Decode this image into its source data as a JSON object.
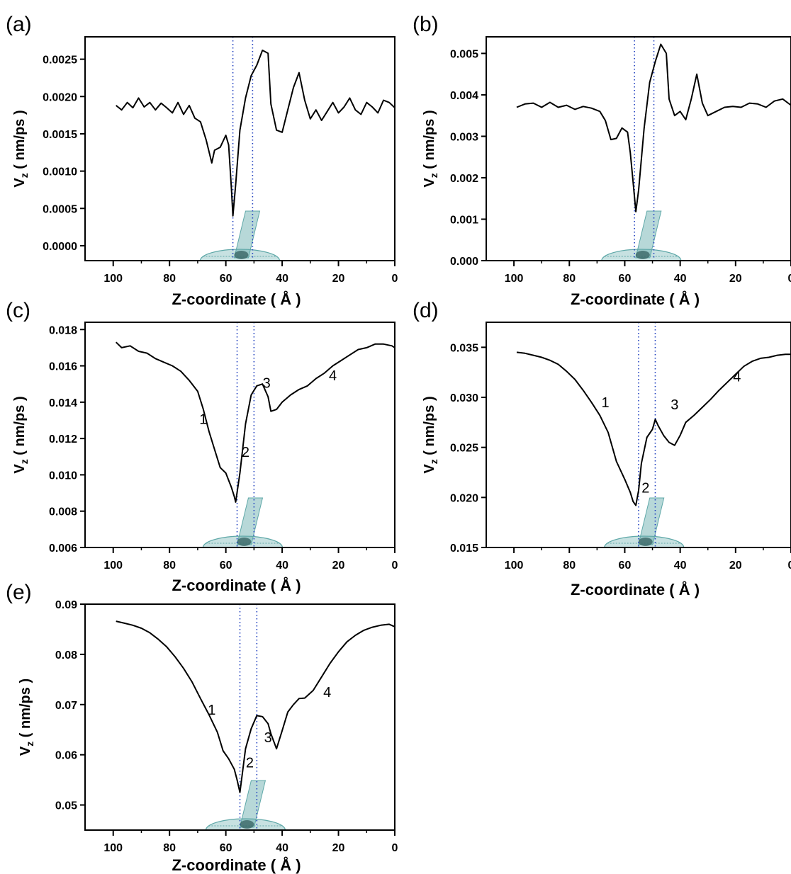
{
  "figure": {
    "colors": {
      "curve": "#000000",
      "marker_line": "#1f3fbf",
      "nanotube": "#5fa8a8",
      "frame": "#000000"
    }
  },
  "chart_data": [
    {
      "panel": "(a)",
      "type": "line",
      "xlabel": "Z-coordinate  ( Å )",
      "ylabel": "V_z ( nm/ps )",
      "xlim": [
        0,
        110
      ],
      "x_reversed": true,
      "ylim": [
        -0.0002,
        0.0028
      ],
      "xticks": [
        100,
        80,
        60,
        40,
        20,
        0
      ],
      "yticks": [
        "0.0000",
        "0.0005",
        "0.0010",
        "0.0015",
        "0.0020",
        "0.0025"
      ],
      "ytick_values": [
        0,
        0.0005,
        0.001,
        0.0015,
        0.002,
        0.0025
      ],
      "vlines": [
        57.5,
        50.5
      ],
      "series": [
        {
          "x": [
            99,
            97,
            95,
            93,
            91,
            89,
            87,
            85,
            83,
            81,
            79,
            77,
            75,
            73,
            71,
            69,
            67,
            65,
            64,
            62,
            60,
            59,
            58,
            57.5,
            56.5,
            55,
            53,
            51,
            49,
            47,
            45,
            44,
            42,
            40,
            38,
            36,
            34,
            32,
            30,
            28,
            26,
            24,
            22,
            20,
            18,
            16,
            14,
            12,
            10,
            8,
            6,
            4,
            2,
            0
          ],
          "y": [
            0.00188,
            0.00182,
            0.00192,
            0.00185,
            0.00198,
            0.00186,
            0.00192,
            0.00182,
            0.00191,
            0.00185,
            0.00178,
            0.00192,
            0.00176,
            0.00188,
            0.00171,
            0.00166,
            0.00142,
            0.00111,
            0.00128,
            0.00132,
            0.00148,
            0.00135,
            0.00075,
            0.0004,
            0.00082,
            0.00155,
            0.00198,
            0.00228,
            0.00242,
            0.00262,
            0.00258,
            0.0019,
            0.00155,
            0.00152,
            0.00182,
            0.00212,
            0.00232,
            0.00195,
            0.0017,
            0.00182,
            0.00168,
            0.0018,
            0.00192,
            0.00178,
            0.00186,
            0.00198,
            0.00182,
            0.00176,
            0.00192,
            0.00186,
            0.00178,
            0.00195,
            0.00192,
            0.00185
          ]
        }
      ]
    },
    {
      "panel": "(b)",
      "type": "line",
      "xlabel": "Z-coordinate  ( Å )",
      "ylabel": "V_z ( nm/ps )",
      "xlim": [
        0,
        110
      ],
      "x_reversed": true,
      "ylim": [
        0,
        0.0054
      ],
      "xticks": [
        100,
        80,
        60,
        40,
        20,
        0
      ],
      "yticks": [
        "0.000",
        "0.001",
        "0.002",
        "0.003",
        "0.004",
        "0.005"
      ],
      "ytick_values": [
        0,
        0.001,
        0.002,
        0.003,
        0.004,
        0.005
      ],
      "vlines": [
        56.5,
        49.5
      ],
      "series": [
        {
          "x": [
            99,
            96,
            93,
            90,
            87,
            84,
            81,
            78,
            75,
            72,
            69,
            67,
            65,
            63,
            61,
            59,
            58,
            57,
            56,
            55,
            53,
            51,
            49,
            47,
            45,
            44,
            42,
            40,
            38,
            36,
            34,
            32,
            30,
            27,
            24,
            21,
            18,
            15,
            12,
            9,
            6,
            3,
            0
          ],
          "y": [
            0.0037,
            0.00378,
            0.0038,
            0.0037,
            0.00382,
            0.0037,
            0.00375,
            0.00365,
            0.00372,
            0.00368,
            0.0036,
            0.00338,
            0.00292,
            0.00295,
            0.0032,
            0.0031,
            0.0026,
            0.0019,
            0.00118,
            0.0017,
            0.0032,
            0.0043,
            0.0048,
            0.00522,
            0.005,
            0.0039,
            0.0035,
            0.0036,
            0.0034,
            0.0039,
            0.0045,
            0.0038,
            0.0035,
            0.0036,
            0.0037,
            0.00372,
            0.0037,
            0.0038,
            0.00378,
            0.0037,
            0.00385,
            0.0039,
            0.00375
          ]
        }
      ]
    },
    {
      "panel": "(c)",
      "type": "line",
      "xlabel": "Z-coordinate  ( Å )",
      "ylabel": "V_z ( nm/ps )",
      "xlim": [
        0,
        110
      ],
      "x_reversed": true,
      "ylim": [
        0.006,
        0.0184
      ],
      "xticks": [
        100,
        80,
        60,
        40,
        20,
        0
      ],
      "yticks": [
        "0.006",
        "0.008",
        "0.010",
        "0.012",
        "0.014",
        "0.016",
        "0.018"
      ],
      "ytick_values": [
        0.006,
        0.008,
        0.01,
        0.012,
        0.014,
        0.016,
        0.018
      ],
      "vlines": [
        56,
        50
      ],
      "region_labels": [
        {
          "text": "1",
          "x": 68,
          "y": 0.0128
        },
        {
          "text": "2",
          "x": 53,
          "y": 0.011
        },
        {
          "text": "3",
          "x": 45.5,
          "y": 0.0148
        },
        {
          "text": "4",
          "x": 22,
          "y": 0.0152
        }
      ],
      "series": [
        {
          "x": [
            99,
            97,
            94,
            91,
            88,
            85,
            82,
            79,
            76,
            73,
            70,
            68,
            66,
            64,
            62,
            60,
            58,
            57,
            56.5,
            55,
            53,
            51,
            49,
            47,
            45,
            44,
            42,
            40,
            37,
            34,
            31,
            28,
            25,
            22,
            19,
            16,
            13,
            10,
            7,
            4,
            1,
            0
          ],
          "y": [
            0.0173,
            0.017,
            0.0171,
            0.0168,
            0.0167,
            0.0164,
            0.0162,
            0.016,
            0.0157,
            0.0152,
            0.0146,
            0.0136,
            0.0124,
            0.0114,
            0.0104,
            0.0101,
            0.0093,
            0.0088,
            0.0085,
            0.0101,
            0.0128,
            0.0144,
            0.0149,
            0.015,
            0.0143,
            0.0135,
            0.0136,
            0.014,
            0.0144,
            0.0147,
            0.0149,
            0.0153,
            0.0156,
            0.016,
            0.0163,
            0.0166,
            0.0169,
            0.017,
            0.0172,
            0.0172,
            0.0171,
            0.017
          ]
        }
      ]
    },
    {
      "panel": "(d)",
      "type": "line",
      "xlabel": "Z-coordinate  ( Å )",
      "ylabel": "V_z ( nm/ps )",
      "xlim": [
        0,
        110
      ],
      "x_reversed": true,
      "ylim": [
        0.015,
        0.0375
      ],
      "xticks": [
        100,
        80,
        60,
        40,
        20,
        0
      ],
      "yticks": [
        "0.015",
        "0.020",
        "0.025",
        "0.030",
        "0.035"
      ],
      "ytick_values": [
        0.015,
        0.02,
        0.025,
        0.03,
        0.035
      ],
      "vlines": [
        55,
        49
      ],
      "region_labels": [
        {
          "text": "1",
          "x": 67,
          "y": 0.029
        },
        {
          "text": "2",
          "x": 52.5,
          "y": 0.0205
        },
        {
          "text": "3",
          "x": 42,
          "y": 0.0288
        },
        {
          "text": "4",
          "x": 19.5,
          "y": 0.0316
        }
      ],
      "series": [
        {
          "x": [
            99,
            96,
            93,
            90,
            87,
            84,
            81,
            78,
            75,
            72,
            69,
            66,
            63,
            60,
            58,
            57,
            56,
            55,
            54,
            52,
            50,
            49,
            48,
            46,
            44,
            42,
            40,
            38,
            35,
            32,
            29,
            26,
            23,
            20,
            17,
            14,
            11,
            8,
            5,
            2,
            0
          ],
          "y": [
            0.0345,
            0.0344,
            0.0342,
            0.034,
            0.0337,
            0.0333,
            0.0326,
            0.0318,
            0.0307,
            0.0295,
            0.0282,
            0.0265,
            0.0236,
            0.0218,
            0.0205,
            0.0196,
            0.0192,
            0.0207,
            0.0234,
            0.026,
            0.0268,
            0.0278,
            0.0272,
            0.0262,
            0.0255,
            0.0252,
            0.0262,
            0.0275,
            0.0282,
            0.029,
            0.0298,
            0.0307,
            0.0315,
            0.0323,
            0.0331,
            0.0336,
            0.0339,
            0.034,
            0.0342,
            0.0343,
            0.0343
          ]
        }
      ]
    },
    {
      "panel": "(e)",
      "type": "line",
      "xlabel": "Z-coordinate  ( Å )",
      "ylabel": "V_z ( nm/ps )",
      "xlim": [
        0,
        110
      ],
      "x_reversed": true,
      "ylim": [
        0.045,
        0.09
      ],
      "xticks": [
        100,
        80,
        60,
        40,
        20,
        0
      ],
      "yticks": [
        "0.05",
        "0.06",
        "0.07",
        "0.08",
        "0.09"
      ],
      "ytick_values": [
        0.05,
        0.06,
        0.07,
        0.08,
        0.09
      ],
      "vlines": [
        55,
        49
      ],
      "region_labels": [
        {
          "text": "1",
          "x": 65,
          "y": 0.068
        },
        {
          "text": "2",
          "x": 51.5,
          "y": 0.0575
        },
        {
          "text": "3",
          "x": 45,
          "y": 0.0625
        },
        {
          "text": "4",
          "x": 24,
          "y": 0.0715
        }
      ],
      "series": [
        {
          "x": [
            99,
            96,
            93,
            90,
            87,
            84,
            81,
            78,
            75,
            72,
            69,
            66,
            63,
            61,
            59,
            57,
            56,
            55,
            53,
            51,
            49,
            47,
            45,
            44,
            42,
            40,
            38,
            36,
            34,
            32,
            29,
            26,
            23,
            20,
            17,
            14,
            11,
            8,
            5,
            2,
            0
          ],
          "y": [
            0.0866,
            0.0862,
            0.0858,
            0.0852,
            0.0843,
            0.083,
            0.0815,
            0.0795,
            0.0772,
            0.0745,
            0.0712,
            0.068,
            0.0645,
            0.0608,
            0.0592,
            0.0571,
            0.055,
            0.0525,
            0.0612,
            0.0652,
            0.0678,
            0.0676,
            0.0662,
            0.0642,
            0.0612,
            0.0648,
            0.0685,
            0.07,
            0.0712,
            0.0713,
            0.0728,
            0.0755,
            0.0782,
            0.0805,
            0.0825,
            0.0838,
            0.0848,
            0.0854,
            0.0858,
            0.086,
            0.0855
          ]
        }
      ]
    }
  ]
}
